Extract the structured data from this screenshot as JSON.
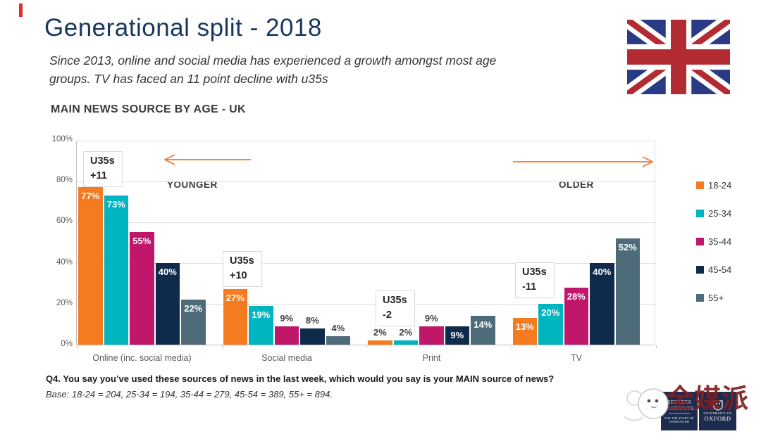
{
  "slide": {
    "title": "Generational split - 2018",
    "subtitle_line1": "Since 2013, online and social media has experienced a growth amongst most age",
    "subtitle_line2": "groups. TV has faced an 11 point decline with u35s",
    "heading": "MAIN NEWS SOURCE BY AGE - UK",
    "footer_question": "Q4. You say you’ve used these sources of news in the last week, which would you say is your MAIN source of news?",
    "footer_base": "Base: 18-24 = 204, 25-34 = 194, 35-44 = 279, 45-54 = 389, 55+ = 894."
  },
  "chart_data": {
    "type": "bar",
    "title": "MAIN NEWS SOURCE BY AGE - UK",
    "categories": [
      "Online (inc. social media)",
      "Social media",
      "Print",
      "TV"
    ],
    "series": [
      {
        "name": "18-24",
        "color": "#F47B20",
        "values": [
          77,
          27,
          2,
          13
        ],
        "label_inside": [
          true,
          true,
          false,
          true
        ]
      },
      {
        "name": "25-34",
        "color": "#00B4C0",
        "values": [
          73,
          19,
          2,
          20
        ],
        "label_inside": [
          true,
          true,
          false,
          true
        ]
      },
      {
        "name": "35-44",
        "color": "#C0176B",
        "values": [
          55,
          9,
          9,
          28
        ],
        "label_inside": [
          true,
          false,
          false,
          true
        ]
      },
      {
        "name": "45-54",
        "color": "#0F2B4C",
        "values": [
          40,
          8,
          9,
          40
        ],
        "label_inside": [
          true,
          false,
          true,
          true
        ]
      },
      {
        "name": "55+",
        "color": "#4E6B79",
        "values": [
          22,
          4,
          14,
          52
        ],
        "label_inside": [
          true,
          false,
          true,
          true
        ]
      }
    ],
    "value_suffix": "%",
    "ylim": [
      0,
      100
    ],
    "yticks": [
      0,
      20,
      40,
      60,
      80,
      100
    ],
    "ytick_labels": [
      "0%",
      "20%",
      "40%",
      "60%",
      "80%",
      "100%"
    ],
    "grid": true,
    "legend_position": "right",
    "annotations": [
      {
        "line1": "U35s",
        "line2": "+11"
      },
      {
        "line1": "U35s",
        "line2": "+10"
      },
      {
        "line1": "U35s",
        "line2": "-2"
      },
      {
        "line1": "U35s",
        "line2": "-11"
      }
    ],
    "direction_labels": {
      "left": "YOUNGER",
      "right": "OLDER"
    }
  },
  "colors": {
    "accent_red": "#E4282B",
    "title_navy": "#17375E",
    "arrow_orange": "#ED7D31"
  },
  "logos": {
    "reuters_line1": "REUTERS",
    "reuters_line2": "INSTITUTE",
    "reuters_line3": "FOR THE STUDY OF JOURNALISM",
    "oxford_line1": "UNIVERSITY OF",
    "oxford_line2": "OXFORD"
  },
  "watermark": {
    "text": "全媒派"
  }
}
